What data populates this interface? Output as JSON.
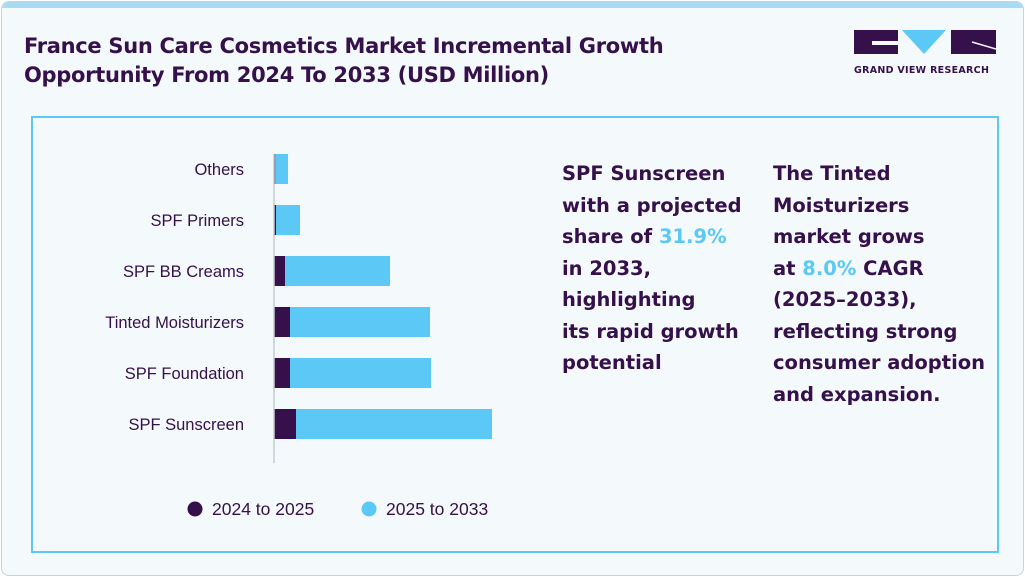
{
  "title": "France Sun Care Cosmetics Market Incremental Growth Opportunity From 2024 To 2033 (USD Million)",
  "logo": {
    "text": "GRAND VIEW RESEARCH"
  },
  "colors": {
    "dark": "#35104a",
    "accent": "#5bc8f5",
    "background": "#f4f9fc"
  },
  "chart_data": {
    "type": "bar",
    "orientation": "horizontal",
    "stacked": true,
    "title": "",
    "xlabel": "",
    "ylabel": "",
    "value_axis_labels_shown": false,
    "grid": false,
    "legend_position": "bottom",
    "categories": [
      "Others",
      "SPF Primers",
      "SPF BB Creams",
      "Tinted Moisturizers",
      "SPF Foundation",
      "SPF Sunscreen"
    ],
    "series": [
      {
        "name": "2024 to 2025",
        "color": "#35104a",
        "values": [
          1.3,
          2,
          11,
          16,
          16,
          22
        ]
      },
      {
        "name": "2025 to 2033",
        "color": "#5bc8f5",
        "values": [
          12.7,
          24,
          105,
          140,
          141,
          196
        ]
      }
    ]
  },
  "insights": [
    {
      "lines": [
        "SPF Sunscreen",
        "with a projected",
        "share of |31.9%",
        "in 2033,",
        "highlighting",
        "its rapid growth",
        "potential"
      ]
    },
    {
      "lines": [
        "The Tinted",
        "Moisturizers",
        "market grows",
        "at |8.0%| CAGR",
        "(2025–2033),",
        "reflecting strong",
        "consumer adoption",
        "and expansion."
      ]
    }
  ]
}
